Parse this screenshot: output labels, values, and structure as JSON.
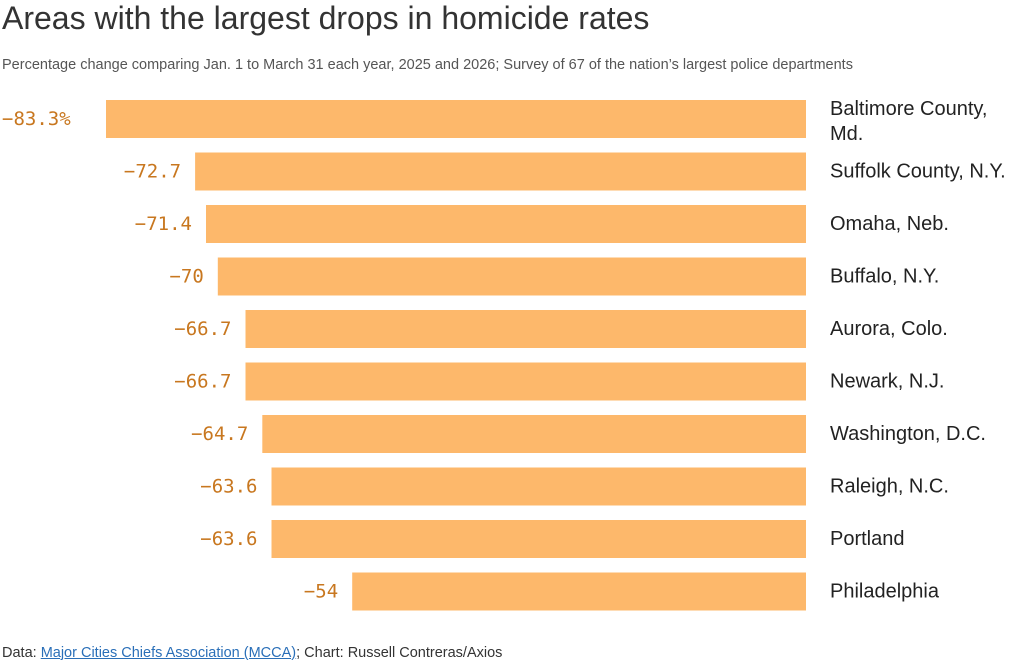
{
  "title": "Areas with the largest drops in homicide rates",
  "subtitle": "Percentage change comparing Jan. 1 to March 31 each year, 2025 and 2026; Survey of 67 of the nation’s largest police departments",
  "footer": {
    "data_prefix": "Data: ",
    "source_link": "Major Cities Chiefs Association (MCCA)",
    "chart_credit": "; Chart: Russell Contreras/Axios"
  },
  "colors": {
    "bar": "#fdb86b",
    "value_text": "#c8771f",
    "label_text": "#222222"
  },
  "chart_data": {
    "type": "bar",
    "orientation": "horizontal",
    "title": "Areas with the largest drops in homicide rates",
    "subtitle": "Percentage change comparing Jan. 1 to March 31 each year, 2025 and 2026; Survey of 67 of the nation’s largest police departments",
    "xlabel": "",
    "ylabel": "",
    "xlim": [
      -83.3,
      0
    ],
    "grid": false,
    "legend": "none",
    "categories": [
      [
        "Baltimore County,",
        "Md."
      ],
      [
        "Suffolk County, N.Y."
      ],
      [
        "Omaha, Neb."
      ],
      [
        "Buffalo, N.Y."
      ],
      [
        "Aurora, Colo."
      ],
      [
        "Newark, N.J."
      ],
      [
        "Washington, D.C."
      ],
      [
        "Raleigh, N.C."
      ],
      [
        "Portland"
      ],
      [
        "Philadelphia"
      ]
    ],
    "values": [
      -83.3,
      -72.7,
      -71.4,
      -70,
      -66.7,
      -66.7,
      -64.7,
      -63.6,
      -63.6,
      -54
    ],
    "value_labels": [
      "−83.3%",
      "−72.7",
      "−71.4",
      "−70",
      "−66.7",
      "−66.7",
      "−64.7",
      "−63.6",
      "−63.6",
      "−54"
    ]
  }
}
